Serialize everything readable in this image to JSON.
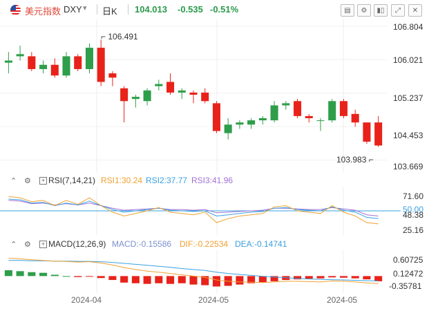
{
  "header": {
    "name": "美元指数",
    "symbol": "DXY",
    "period": "日K",
    "price": "104.013",
    "change": "-0.535",
    "change_pct": "-0.51%"
  },
  "main_axis": {
    "ticks": [
      "106.804",
      "106.021",
      "105.237",
      "104.453",
      "103.669"
    ]
  },
  "high_label": "106.491",
  "low_label": "103.983",
  "rsi": {
    "params": "RSI(7,14,21)",
    "rsi1": "RSI1:30.24",
    "rsi2": "RSI2:37.77",
    "rsi3": "RSI3:41.96",
    "ticks": [
      "71.60",
      "50.00",
      "48.38",
      "25.16"
    ]
  },
  "macd": {
    "params": "MACD(12,26,9)",
    "macd_val": "MACD:-0.15586",
    "dif": "DIF:-0.22534",
    "dea": "DEA:-0.14741",
    "ticks": [
      "0.60725",
      "0.12472",
      "-0.35781"
    ]
  },
  "x_labels": [
    "2024-04",
    "2024-05",
    "2024-05"
  ],
  "colors": {
    "up": "#2e9e4a",
    "down": "#e8221a",
    "rsi1": "#f0a030",
    "rsi2": "#3aa0e0",
    "rsi3": "#a071d6",
    "dif": "#f0a030",
    "dea": "#3aa0e0"
  },
  "chart_data": {
    "type": "candlestick",
    "ylim": [
      103.5,
      106.9
    ],
    "candles": [
      {
        "o": 105.95,
        "h": 106.2,
        "l": 105.7,
        "c": 106.0
      },
      {
        "o": 106.1,
        "h": 106.35,
        "l": 106.0,
        "c": 106.15
      },
      {
        "o": 106.1,
        "h": 106.2,
        "l": 105.75,
        "c": 105.8
      },
      {
        "o": 105.8,
        "h": 106.0,
        "l": 105.7,
        "c": 105.9
      },
      {
        "o": 105.9,
        "h": 106.05,
        "l": 105.6,
        "c": 105.65
      },
      {
        "o": 105.65,
        "h": 106.2,
        "l": 105.6,
        "c": 106.1
      },
      {
        "o": 106.1,
        "h": 106.15,
        "l": 105.75,
        "c": 105.8
      },
      {
        "o": 105.8,
        "h": 106.4,
        "l": 105.7,
        "c": 106.3
      },
      {
        "o": 106.3,
        "h": 106.49,
        "l": 105.4,
        "c": 105.5
      },
      {
        "o": 105.7,
        "h": 105.75,
        "l": 105.4,
        "c": 105.6
      },
      {
        "o": 105.35,
        "h": 105.4,
        "l": 104.55,
        "c": 105.05
      },
      {
        "o": 105.1,
        "h": 105.2,
        "l": 104.9,
        "c": 105.15
      },
      {
        "o": 105.05,
        "h": 105.35,
        "l": 104.95,
        "c": 105.3
      },
      {
        "o": 105.4,
        "h": 105.55,
        "l": 105.3,
        "c": 105.45
      },
      {
        "o": 105.5,
        "h": 105.7,
        "l": 105.2,
        "c": 105.25
      },
      {
        "o": 105.25,
        "h": 105.35,
        "l": 105.1,
        "c": 105.3
      },
      {
        "o": 105.25,
        "h": 105.3,
        "l": 105.0,
        "c": 105.2
      },
      {
        "o": 105.25,
        "h": 105.35,
        "l": 105.0,
        "c": 105.05
      },
      {
        "o": 105.0,
        "h": 105.05,
        "l": 104.3,
        "c": 104.35
      },
      {
        "o": 104.3,
        "h": 104.65,
        "l": 104.15,
        "c": 104.5
      },
      {
        "o": 104.5,
        "h": 104.6,
        "l": 104.4,
        "c": 104.55
      },
      {
        "o": 104.5,
        "h": 104.65,
        "l": 104.4,
        "c": 104.6
      },
      {
        "o": 104.6,
        "h": 104.7,
        "l": 104.5,
        "c": 104.65
      },
      {
        "o": 104.6,
        "h": 105.05,
        "l": 104.55,
        "c": 104.95
      },
      {
        "o": 104.95,
        "h": 105.05,
        "l": 104.85,
        "c": 105.0
      },
      {
        "o": 105.05,
        "h": 105.1,
        "l": 104.65,
        "c": 104.7
      },
      {
        "o": 104.7,
        "h": 104.75,
        "l": 104.55,
        "c": 104.65
      },
      {
        "o": 104.6,
        "h": 104.65,
        "l": 104.35,
        "c": 104.6
      },
      {
        "o": 104.6,
        "h": 105.1,
        "l": 104.55,
        "c": 105.05
      },
      {
        "o": 105.05,
        "h": 105.1,
        "l": 104.65,
        "c": 104.7
      },
      {
        "o": 104.75,
        "h": 104.85,
        "l": 104.45,
        "c": 104.55
      },
      {
        "o": 104.55,
        "h": 104.55,
        "l": 104.05,
        "c": 104.1
      },
      {
        "o": 104.55,
        "h": 104.7,
        "l": 103.98,
        "c": 104.01
      }
    ],
    "rsi_ylim": [
      15,
      85
    ],
    "rsi_ref_line": 50.0,
    "rsi1": [
      72,
      70,
      64,
      66,
      58,
      66,
      60,
      70,
      58,
      48,
      42,
      46,
      50,
      55,
      48,
      46,
      44,
      48,
      32,
      38,
      42,
      44,
      46,
      56,
      58,
      50,
      48,
      46,
      58,
      48,
      42,
      32,
      30
    ],
    "rsi2": [
      68,
      67,
      62,
      63,
      58,
      62,
      59,
      65,
      58,
      52,
      48,
      50,
      52,
      54,
      51,
      50,
      49,
      50,
      42,
      44,
      46,
      48,
      49,
      54,
      55,
      52,
      51,
      50,
      56,
      51,
      48,
      40,
      38
    ],
    "rsi3": [
      66,
      65,
      61,
      62,
      59,
      61,
      59,
      62,
      58,
      54,
      51,
      52,
      53,
      54,
      52,
      52,
      51,
      52,
      47,
      48,
      49,
      50,
      51,
      54,
      54,
      53,
      52,
      52,
      55,
      53,
      51,
      44,
      42
    ],
    "macd_ylim": [
      -0.48,
      0.75
    ],
    "macd_hist": [
      0.18,
      0.15,
      0.12,
      0.1,
      0.04,
      0.0,
      -0.03,
      -0.01,
      -0.06,
      -0.12,
      -0.2,
      -0.22,
      -0.24,
      -0.22,
      -0.24,
      -0.22,
      -0.26,
      -0.28,
      -0.32,
      -0.3,
      -0.26,
      -0.22,
      -0.19,
      -0.16,
      -0.12,
      -0.1,
      -0.08,
      -0.07,
      -0.04,
      -0.05,
      -0.07,
      -0.1,
      -0.16
    ],
    "dif": [
      0.55,
      0.53,
      0.5,
      0.48,
      0.46,
      0.45,
      0.43,
      0.44,
      0.4,
      0.34,
      0.26,
      0.2,
      0.15,
      0.12,
      0.08,
      0.04,
      0.0,
      -0.04,
      -0.12,
      -0.16,
      -0.18,
      -0.19,
      -0.2,
      -0.18,
      -0.16,
      -0.16,
      -0.17,
      -0.18,
      -0.15,
      -0.16,
      -0.18,
      -0.21,
      -0.23
    ],
    "dea": [
      0.48,
      0.48,
      0.47,
      0.47,
      0.46,
      0.46,
      0.45,
      0.45,
      0.44,
      0.42,
      0.39,
      0.36,
      0.33,
      0.3,
      0.27,
      0.23,
      0.2,
      0.17,
      0.12,
      0.08,
      0.05,
      0.02,
      -0.01,
      -0.03,
      -0.05,
      -0.07,
      -0.09,
      -0.1,
      -0.11,
      -0.12,
      -0.13,
      -0.14,
      -0.15
    ]
  }
}
